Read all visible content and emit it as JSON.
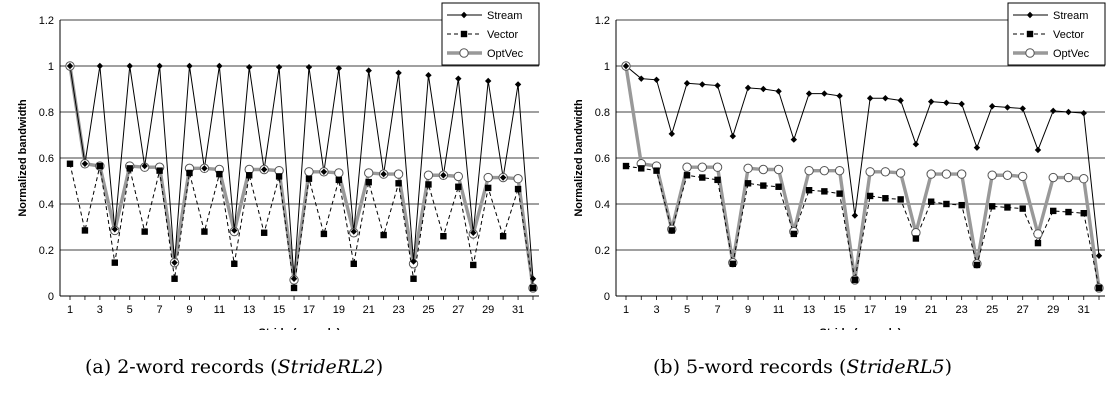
{
  "chart_data": [
    {
      "type": "line",
      "caption_label": "(a) 2-word records (",
      "caption_italic": "StrideRL2",
      "caption_end": ")",
      "xlabel": "Stride (records)",
      "ylabel": "Normalized bandwidth",
      "ylim": [
        0,
        1.2
      ],
      "yticks": [
        "0",
        "0.2",
        "0.4",
        "0.6",
        "0.8",
        "1",
        "1.2"
      ],
      "xticks": [
        "1",
        "3",
        "5",
        "7",
        "9",
        "11",
        "13",
        "15",
        "17",
        "19",
        "21",
        "23",
        "25",
        "27",
        "29",
        "31"
      ],
      "x": [
        1,
        2,
        3,
        4,
        5,
        6,
        7,
        8,
        9,
        10,
        11,
        12,
        13,
        14,
        15,
        16,
        17,
        18,
        19,
        20,
        21,
        22,
        23,
        24,
        25,
        26,
        27,
        28,
        29,
        30,
        31,
        32
      ],
      "grid": "horizontal",
      "legend_position": "top-right",
      "series": [
        {
          "name": "Stream",
          "color": "#000000",
          "marker": "diamond",
          "dash": "solid",
          "values": [
            1.0,
            0.575,
            1.0,
            0.29,
            1.0,
            0.565,
            1.0,
            0.145,
            1.0,
            0.555,
            1.0,
            0.285,
            0.995,
            0.55,
            0.995,
            0.075,
            0.995,
            0.54,
            0.99,
            0.28,
            0.98,
            0.53,
            0.97,
            0.15,
            0.96,
            0.525,
            0.945,
            0.275,
            0.935,
            0.515,
            0.92,
            0.075
          ]
        },
        {
          "name": "Vector",
          "color": "#000000",
          "marker": "square",
          "dash": "dashed",
          "values": [
            0.575,
            0.285,
            0.565,
            0.145,
            0.555,
            0.28,
            0.545,
            0.075,
            0.535,
            0.28,
            0.53,
            0.14,
            0.525,
            0.275,
            0.52,
            0.035,
            0.51,
            0.27,
            0.505,
            0.14,
            0.495,
            0.265,
            0.49,
            0.075,
            0.485,
            0.26,
            0.475,
            0.135,
            0.47,
            0.26,
            0.465,
            0.035
          ]
        },
        {
          "name": "OptVec",
          "color": "#999999",
          "marker": "circle",
          "dash": "solid",
          "values": [
            1.0,
            0.575,
            0.565,
            0.285,
            0.565,
            0.56,
            0.56,
            0.145,
            0.555,
            0.555,
            0.55,
            0.28,
            0.55,
            0.55,
            0.545,
            0.07,
            0.54,
            0.54,
            0.535,
            0.275,
            0.535,
            0.53,
            0.53,
            0.14,
            0.525,
            0.525,
            0.52,
            0.27,
            0.515,
            0.515,
            0.51,
            0.035
          ]
        }
      ]
    },
    {
      "type": "line",
      "caption_label": "(b) 5-word records (",
      "caption_italic": "StrideRL5",
      "caption_end": ")",
      "xlabel": "Stride (records)",
      "ylabel": "Normalized bandwidth",
      "ylim": [
        0,
        1.2
      ],
      "yticks": [
        "0",
        "0.2",
        "0.4",
        "0.6",
        "0.8",
        "1",
        "1.2"
      ],
      "xticks": [
        "1",
        "3",
        "5",
        "7",
        "9",
        "11",
        "13",
        "15",
        "17",
        "19",
        "21",
        "23",
        "25",
        "27",
        "29",
        "31"
      ],
      "x": [
        1,
        2,
        3,
        4,
        5,
        6,
        7,
        8,
        9,
        10,
        11,
        12,
        13,
        14,
        15,
        16,
        17,
        18,
        19,
        20,
        21,
        22,
        23,
        24,
        25,
        26,
        27,
        28,
        29,
        30,
        31,
        32
      ],
      "grid": "horizontal",
      "legend_position": "top-right",
      "series": [
        {
          "name": "Stream",
          "color": "#000000",
          "marker": "diamond",
          "dash": "solid",
          "values": [
            1.0,
            0.945,
            0.94,
            0.705,
            0.925,
            0.92,
            0.915,
            0.695,
            0.905,
            0.9,
            0.89,
            0.68,
            0.88,
            0.88,
            0.87,
            0.35,
            0.86,
            0.86,
            0.85,
            0.66,
            0.845,
            0.84,
            0.835,
            0.645,
            0.825,
            0.82,
            0.815,
            0.635,
            0.805,
            0.8,
            0.795,
            0.175
          ]
        },
        {
          "name": "Vector",
          "color": "#000000",
          "marker": "square",
          "dash": "dashed",
          "values": [
            0.565,
            0.555,
            0.545,
            0.285,
            0.525,
            0.515,
            0.505,
            0.14,
            0.49,
            0.48,
            0.475,
            0.27,
            0.46,
            0.455,
            0.445,
            0.07,
            0.435,
            0.425,
            0.42,
            0.25,
            0.41,
            0.4,
            0.395,
            0.135,
            0.39,
            0.385,
            0.38,
            0.23,
            0.37,
            0.365,
            0.36,
            0.035
          ]
        },
        {
          "name": "OptVec",
          "color": "#999999",
          "marker": "circle",
          "dash": "solid",
          "values": [
            1.0,
            0.575,
            0.565,
            0.29,
            0.56,
            0.56,
            0.56,
            0.145,
            0.555,
            0.55,
            0.55,
            0.28,
            0.545,
            0.545,
            0.545,
            0.07,
            0.54,
            0.54,
            0.535,
            0.275,
            0.53,
            0.53,
            0.53,
            0.14,
            0.525,
            0.525,
            0.52,
            0.27,
            0.515,
            0.515,
            0.51,
            0.035
          ]
        }
      ]
    }
  ]
}
